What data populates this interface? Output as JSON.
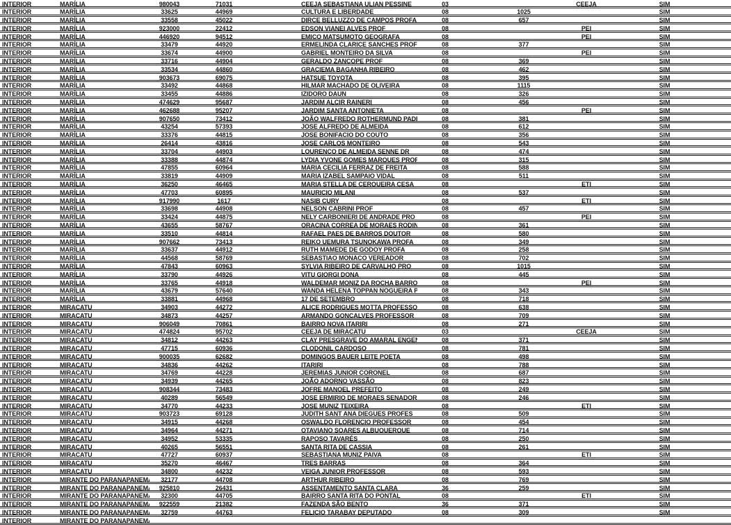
{
  "page": {
    "kind": "scanned-table-page",
    "background_color": "#ffffff",
    "text_color": "#161616",
    "line_color": "#1b1b1b"
  },
  "table": {
    "rows": [
      [
        "INTERIOR",
        "MARÍLIA",
        "980043",
        "71031",
        "CEEJA SEBASTIANA ULIAN PESSINE",
        "03",
        "",
        "CEEJA",
        "SIM"
      ],
      [
        "INTERIOR",
        "MARÍLIA",
        "33625",
        "44969",
        "CULTURA E LIBERDADE",
        "08",
        "1025",
        "",
        "SIM"
      ],
      [
        "INTERIOR",
        "MARÍLIA",
        "33558",
        "45022",
        "DIRCE BELLUZZO DE CAMPOS PROFA",
        "08",
        "657",
        "",
        "SIM"
      ],
      [
        "INTERIOR",
        "MARÍLIA",
        "923000",
        "22412",
        "EDSON VIANEI ALVES PROF",
        "08",
        "",
        "PEI",
        "SIM"
      ],
      [
        "INTERIOR",
        "MARÍLIA",
        "446920",
        "94512",
        "EMICO MATSUMOTO GEOGRAFA",
        "08",
        "",
        "PEI",
        "SIM"
      ],
      [
        "INTERIOR",
        "MARÍLIA",
        "33479",
        "44920",
        "ERMELINDA CLARICE SANCHES PROF",
        "08",
        "377",
        "",
        "SIM"
      ],
      [
        "INTERIOR",
        "MARÍLIA",
        "33674",
        "44900",
        "GABRIEL MONTEIRO DA SILVA",
        "08",
        "",
        "PEI",
        "SIM"
      ],
      [
        "INTERIOR",
        "MARÍLIA",
        "33716",
        "44904",
        "GERALDO ZANCOPE PROF",
        "08",
        "369",
        "",
        "SIM"
      ],
      [
        "INTERIOR",
        "MARÍLIA",
        "33534",
        "44860",
        "GRACIEMA BAGANHA RIBEIRO",
        "08",
        "462",
        "",
        "SIM"
      ],
      [
        "INTERIOR",
        "MARÍLIA",
        "903673",
        "69075",
        "HATSUE TOYOTA",
        "08",
        "395",
        "",
        "SIM"
      ],
      [
        "INTERIOR",
        "MARÍLIA",
        "33492",
        "44868",
        "HILMAR MACHADO DE OLIVEIRA",
        "08",
        "1115",
        "",
        "SIM"
      ],
      [
        "INTERIOR",
        "MARÍLIA",
        "33455",
        "44886",
        "IZIDORO DAUN",
        "08",
        "326",
        "",
        "SIM"
      ],
      [
        "INTERIOR",
        "MARÍLIA",
        "474629",
        "95687",
        "JARDIM ALCIR RAINERI",
        "08",
        "456",
        "",
        "SIM"
      ],
      [
        "INTERIOR",
        "MARÍLIA",
        "462688",
        "95207",
        "JARDIM SANTA ANTONIETA",
        "08",
        "",
        "PEI",
        "SIM"
      ],
      [
        "INTERIOR",
        "MARÍLIA",
        "907650",
        "73412",
        "JOÃO WALFREDO ROTHERMUND PADRE",
        "08",
        "381",
        "",
        "SIM"
      ],
      [
        "INTERIOR",
        "MARÍLIA",
        "43254",
        "57393",
        "JOSE ALFREDO DE ALMEIDA",
        "08",
        "612",
        "",
        "SIM"
      ],
      [
        "INTERIOR",
        "MARÍLIA",
        "33376",
        "44815",
        "JOSE BONIFACIO DO COUTO",
        "08",
        "356",
        "",
        "SIM"
      ],
      [
        "INTERIOR",
        "MARÍLIA",
        "26414",
        "43816",
        "JOSE CARLOS MONTEIRO",
        "08",
        "543",
        "",
        "SIM"
      ],
      [
        "INTERIOR",
        "MARÍLIA",
        "33704",
        "44903",
        "LOURENCO DE ALMEIDA SENNE DR",
        "08",
        "474",
        "",
        "SIM"
      ],
      [
        "INTERIOR",
        "MARÍLIA",
        "33388",
        "44874",
        "LYDIA YVONE GOMES MARQUES PROF",
        "08",
        "315",
        "",
        "SIM"
      ],
      [
        "INTERIOR",
        "MARÍLIA",
        "47855",
        "60964",
        "MARIA CECILIA FERRAZ DE FREITA",
        "08",
        "588",
        "",
        "SIM"
      ],
      [
        "INTERIOR",
        "MARÍLIA",
        "33819",
        "44909",
        "MARIA IZABEL SAMPAIO VIDAL",
        "08",
        "511",
        "",
        "SIM"
      ],
      [
        "INTERIOR",
        "MARÍLIA",
        "36250",
        "46465",
        "MARIA STELLA DE CERQUEIRA CESA",
        "08",
        "",
        "ETI",
        "SIM"
      ],
      [
        "INTERIOR",
        "MARÍLIA",
        "47703",
        "60895",
        "MAURICIO MILANI",
        "08",
        "537",
        "",
        "SIM"
      ],
      [
        "INTERIOR",
        "MARÍLIA",
        "917990",
        "1617",
        "NASIB CURY",
        "08",
        "",
        "ETI",
        "SIM"
      ],
      [
        "INTERIOR",
        "MARÍLIA",
        "33698",
        "44908",
        "NELSON CABRINI PROF",
        "08",
        "457",
        "",
        "SIM"
      ],
      [
        "INTERIOR",
        "MARÍLIA",
        "33424",
        "44875",
        "NELY CARBONIERI DE ANDRADE PRO",
        "08",
        "",
        "PEI",
        "SIM"
      ],
      [
        "INTERIOR",
        "MARÍLIA",
        "43655",
        "58767",
        "ORACINA CORREA DE MORAES RODIN",
        "08",
        "361",
        "",
        "SIM"
      ],
      [
        "INTERIOR",
        "MARÍLIA",
        "33510",
        "44814",
        "RAFAEL PAES DE BARROS DOUTOR",
        "08",
        "580",
        "",
        "SIM"
      ],
      [
        "INTERIOR",
        "MARÍLIA",
        "907662",
        "73413",
        "REIKO UEMURA TSUNOKAWA PROFA",
        "08",
        "349",
        "",
        "SIM"
      ],
      [
        "INTERIOR",
        "MARÍLIA",
        "33637",
        "44912",
        "RUTH MAMEDE DE GODOY PROFA",
        "08",
        "258",
        "",
        "SIM"
      ],
      [
        "INTERIOR",
        "MARÍLIA",
        "44568",
        "58769",
        "SEBASTIAO MONACO VEREADOR",
        "08",
        "702",
        "",
        "SIM"
      ],
      [
        "INTERIOR",
        "MARÍLIA",
        "47843",
        "60963",
        "SYLVIA RIBEIRO DE CARVALHO PRO",
        "08",
        "1015",
        "",
        "SIM"
      ],
      [
        "INTERIOR",
        "MARÍLIA",
        "33790",
        "44926",
        "VITU GIORGI DONA",
        "08",
        "445",
        "",
        "SIM"
      ],
      [
        "INTERIOR",
        "MARÍLIA",
        "33765",
        "44918",
        "WALDEMAR MONIZ DA ROCHA BARROS",
        "08",
        "",
        "PEI",
        "SIM"
      ],
      [
        "INTERIOR",
        "MARÍLIA",
        "43679",
        "57640",
        "WANDA HELENA TOPPAN NOGUEIRA P",
        "08",
        "343",
        "",
        "SIM"
      ],
      [
        "INTERIOR",
        "MARÍLIA",
        "33881",
        "44968",
        "17 DE SETEMBRO",
        "08",
        "718",
        "",
        "SIM"
      ],
      [
        "INTERIOR",
        "MIRACATU",
        "34903",
        "44272",
        "ALICE RODRIGUES MOTTA PROFESSO",
        "08",
        "638",
        "",
        "SIM"
      ],
      [
        "INTERIOR",
        "MIRACATU",
        "34873",
        "44257",
        "ARMANDO GONCALVES PROFESSOR",
        "08",
        "709",
        "",
        "SIM"
      ],
      [
        "INTERIOR",
        "MIRACATU",
        "906049",
        "70861",
        "BAIRRO NOVA ITARIRI",
        "08",
        "271",
        "",
        "SIM"
      ],
      [
        "INTERIOR",
        "MIRACATU",
        "474824",
        "95702",
        "CEEJA DE MIRACATU",
        "03",
        "",
        "CEEJA",
        "SIM"
      ],
      [
        "INTERIOR",
        "MIRACATU",
        "34812",
        "44263",
        "CLAY PRESGRAVE DO AMARAL ENGEN",
        "08",
        "371",
        "",
        "SIM"
      ],
      [
        "INTERIOR",
        "MIRACATU",
        "47715",
        "60936",
        "CLODONIL CARDOSO",
        "08",
        "781",
        "",
        "SIM"
      ],
      [
        "INTERIOR",
        "MIRACATU",
        "900035",
        "62682",
        "DOMINGOS BAUER LEITE POETA",
        "08",
        "498",
        "",
        "SIM"
      ],
      [
        "INTERIOR",
        "MIRACATU",
        "34836",
        "44262",
        "ITARIRI",
        "08",
        "788",
        "",
        "SIM"
      ],
      [
        "INTERIOR",
        "MIRACATU",
        "34769",
        "44228",
        "JEREMIAS JUNIOR CORONEL",
        "08",
        "687",
        "",
        "SIM"
      ],
      [
        "INTERIOR",
        "MIRACATU",
        "34939",
        "44265",
        "JOÃO ADORNO VASSÃO",
        "08",
        "823",
        "",
        "SIM"
      ],
      [
        "INTERIOR",
        "MIRACATU",
        "908344",
        "73483",
        "JOFRE MANOEL PREFEITO",
        "08",
        "249",
        "",
        "SIM"
      ],
      [
        "INTERIOR",
        "MIRACATU",
        "40289",
        "56549",
        "JOSE ERMIRIO DE MORAES SENADOR",
        "08",
        "246",
        "",
        "SIM"
      ],
      [
        "INTERIOR",
        "MIRACATU",
        "34770",
        "44233",
        "JOSE MUNIZ TEIXEIRA",
        "08",
        "",
        "ETI",
        "SIM"
      ],
      [
        "INTERIOR",
        "MIRACATU",
        "903723",
        "69128",
        "JUDITH SANT ANA DIEGUES PROFES",
        "08",
        "509",
        "",
        "SIM"
      ],
      [
        "INTERIOR",
        "MIRACATU",
        "34915",
        "44268",
        "OSWALDO FLORENCIO PROFESSOR",
        "08",
        "454",
        "",
        "SIM"
      ],
      [
        "INTERIOR",
        "MIRACATU",
        "34964",
        "44271",
        "OTAVIANO SOARES ALBUQUERQUE",
        "08",
        "714",
        "",
        "SIM"
      ],
      [
        "INTERIOR",
        "MIRACATU",
        "34952",
        "53335",
        "RAPOSO TAVARÉS",
        "08",
        "250",
        "",
        "SIM"
      ],
      [
        "INTERIOR",
        "MIRACATU",
        "40265",
        "56551",
        "SANTA RITA DE CASSIA",
        "08",
        "261",
        "",
        "SIM"
      ],
      [
        "INTERIOR",
        "MIRACATU",
        "47727",
        "60937",
        "SEBASTIANA MUNIZ PAIVA",
        "08",
        "",
        "ETI",
        "SIM"
      ],
      [
        "INTERIOR",
        "MIRACATU",
        "35270",
        "46467",
        "TRES BARRAS",
        "08",
        "364",
        "",
        "SIM"
      ],
      [
        "INTERIOR",
        "MIRACATU",
        "34800",
        "44232",
        "VEIGA JUNIOR PROFESSOR",
        "08",
        "593",
        "",
        "SIM"
      ],
      [
        "INTERIOR",
        "MIRANTE DO PARANAPANEMA",
        "32177",
        "44708",
        "ARTHUR RIBEIRO",
        "08",
        "769",
        "",
        "SIM"
      ],
      [
        "INTERIOR",
        "MIRANTE DO PARANAPANEMA",
        "925810",
        "26431",
        "ASSENTAMENTO SANTA CLARA",
        "36",
        "259",
        "",
        "SIM"
      ],
      [
        "INTERIOR",
        "MIRANTE DO PARANAPANEMA",
        "32300",
        "44705",
        "BAIRRO SANTA RITA DO PONTAL",
        "08",
        "",
        "ETI",
        "SIM"
      ],
      [
        "INTERIOR",
        "MIRANTE DO PARANAPANEMA",
        "922559",
        "21382",
        "FAZENDA SÃO BENTO",
        "36",
        "371",
        "",
        "SIM"
      ],
      [
        "INTERIOR",
        "MIRANTE DO PARANAPANEMA",
        "32759",
        "44763",
        "FELICIO TARABAY DEPUTADO",
        "08",
        "309",
        "",
        "SIM"
      ],
      [
        "INTERIOR",
        "MIRANTE DO PARANAPANEMA",
        "",
        "",
        "",
        "",
        "",
        "",
        ""
      ]
    ]
  }
}
